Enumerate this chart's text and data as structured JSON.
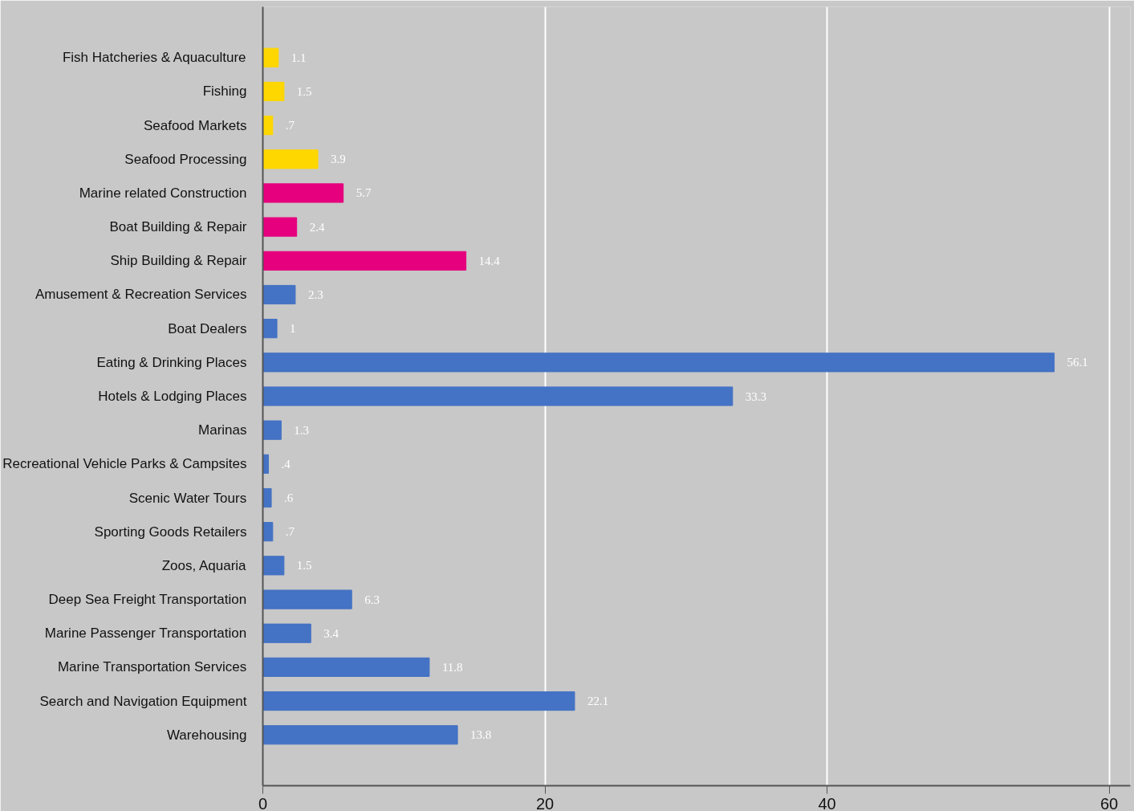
{
  "chart_data": {
    "type": "bar",
    "orientation": "horizontal",
    "categories": [
      "Fish Hatcheries & Aquaculture",
      "Fishing",
      "Seafood Markets",
      "Seafood Processing",
      "Marine related Construction",
      "Boat Building & Repair",
      "Ship Building & Repair",
      "Amusement & Recreation Services",
      "Boat Dealers",
      "Eating & Drinking Places",
      "Hotels & Lodging Places",
      "Marinas",
      "Recreational Vehicle Parks & Campsites",
      "Scenic Water Tours",
      "Sporting Goods Retailers",
      "Zoos, Aquaria",
      "Deep Sea Freight Transportation",
      "Marine Passenger Transportation",
      "Marine Transportation Services",
      "Search and Navigation Equipment",
      "Warehousing"
    ],
    "values": [
      1.1,
      1.5,
      0.7,
      3.9,
      5.7,
      2.4,
      14.4,
      2.3,
      1,
      56.1,
      33.3,
      1.3,
      0.4,
      0.6,
      0.7,
      1.5,
      6.3,
      3.4,
      11.8,
      22.1,
      13.8
    ],
    "value_labels": [
      "1.1",
      "1.5",
      ".7",
      "3.9",
      "5.7",
      "2.4",
      "14.4",
      "2.3",
      "1",
      "56.1",
      "33.3",
      "1.3",
      ".4",
      ".6",
      ".7",
      "1.5",
      "6.3",
      "3.4",
      "11.8",
      "22.1",
      "13.8"
    ],
    "colors": [
      "#ffd700",
      "#ffd700",
      "#ffd700",
      "#ffd700",
      "#e6007e",
      "#e6007e",
      "#e6007e",
      "#4472c4",
      "#4472c4",
      "#4472c4",
      "#4472c4",
      "#4472c4",
      "#4472c4",
      "#4472c4",
      "#4472c4",
      "#4472c4",
      "#4472c4",
      "#4472c4",
      "#4472c4",
      "#4472c4",
      "#4472c4"
    ],
    "xlim": [
      0,
      61.5
    ],
    "xticks": [
      0,
      20,
      40,
      60
    ],
    "grid": "x"
  }
}
